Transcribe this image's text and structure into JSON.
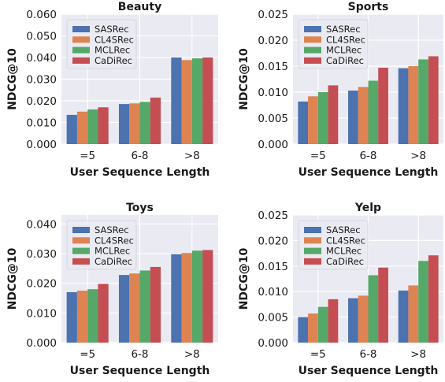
{
  "colors": {
    "panel_bg": "#EAEAF2",
    "grid": "#FFFFFF",
    "series": [
      "#4C72B0",
      "#DD8452",
      "#55A868",
      "#C44E52"
    ]
  },
  "chart_data": [
    {
      "type": "bar",
      "title": "Beauty",
      "xlabel": "User Sequence Length",
      "ylabel": "NDCG@10",
      "categories": [
        "=5",
        "6-8",
        ">8"
      ],
      "ylim": [
        0,
        0.06
      ],
      "yticks": [
        "0.000",
        "0.010",
        "0.020",
        "0.030",
        "0.040",
        "0.050",
        "0.060"
      ],
      "ytick_values": [
        0,
        0.01,
        0.02,
        0.03,
        0.04,
        0.05,
        0.06
      ],
      "grid": true,
      "legend": "top-left",
      "series": [
        {
          "name": "SASRec",
          "values": [
            0.0135,
            0.0185,
            0.04
          ]
        },
        {
          "name": "CL4SRec",
          "values": [
            0.015,
            0.0188,
            0.0388
          ]
        },
        {
          "name": "MCLRec",
          "values": [
            0.016,
            0.0195,
            0.0396
          ]
        },
        {
          "name": "CaDiRec",
          "values": [
            0.017,
            0.0215,
            0.04
          ]
        }
      ]
    },
    {
      "type": "bar",
      "title": "Sports",
      "xlabel": "User Sequence Length",
      "ylabel": "NDCG@10",
      "categories": [
        "=5",
        "6-8",
        ">8"
      ],
      "ylim": [
        0,
        0.025
      ],
      "yticks": [
        "0.000",
        "0.005",
        "0.010",
        "0.015",
        "0.020",
        "0.025"
      ],
      "ytick_values": [
        0,
        0.005,
        0.01,
        0.015,
        0.02,
        0.025
      ],
      "grid": true,
      "legend": "top-left",
      "series": [
        {
          "name": "SASRec",
          "values": [
            0.0082,
            0.0103,
            0.0146
          ]
        },
        {
          "name": "CL4SRec",
          "values": [
            0.0092,
            0.011,
            0.015
          ]
        },
        {
          "name": "MCLRec",
          "values": [
            0.01,
            0.0122,
            0.0163
          ]
        },
        {
          "name": "CaDiRec",
          "values": [
            0.0113,
            0.0147,
            0.0169
          ]
        }
      ]
    },
    {
      "type": "bar",
      "title": "Toys",
      "xlabel": "User Sequence Length",
      "ylabel": "NDCG@10",
      "categories": [
        "=5",
        "6-8",
        ">8"
      ],
      "ylim": [
        0,
        0.043
      ],
      "yticks": [
        "0.000",
        "0.010",
        "0.020",
        "0.030",
        "0.040"
      ],
      "ytick_values": [
        0,
        0.01,
        0.02,
        0.03,
        0.04
      ],
      "grid": true,
      "legend": "top-left",
      "series": [
        {
          "name": "SASRec",
          "values": [
            0.017,
            0.0228,
            0.0298
          ]
        },
        {
          "name": "CL4SRec",
          "values": [
            0.0175,
            0.0233,
            0.0302
          ]
        },
        {
          "name": "MCLRec",
          "values": [
            0.018,
            0.0243,
            0.031
          ]
        },
        {
          "name": "CaDiRec",
          "values": [
            0.0198,
            0.0255,
            0.0312
          ]
        }
      ]
    },
    {
      "type": "bar",
      "title": "Yelp",
      "xlabel": "User Sequence Length",
      "ylabel": "NDCG@10",
      "categories": [
        "=5",
        "6-8",
        ">8"
      ],
      "ylim": [
        0,
        0.025
      ],
      "yticks": [
        "0.000",
        "0.005",
        "0.010",
        "0.015",
        "0.020",
        "0.025"
      ],
      "ytick_values": [
        0,
        0.005,
        0.01,
        0.015,
        0.02,
        0.025
      ],
      "grid": true,
      "legend": "top-left",
      "series": [
        {
          "name": "SASRec",
          "values": [
            0.005,
            0.0087,
            0.0102
          ]
        },
        {
          "name": "CL4SRec",
          "values": [
            0.0057,
            0.0092,
            0.0112
          ]
        },
        {
          "name": "MCLRec",
          "values": [
            0.007,
            0.0132,
            0.016
          ]
        },
        {
          "name": "CaDiRec",
          "values": [
            0.0085,
            0.0147,
            0.0171
          ]
        }
      ]
    }
  ]
}
